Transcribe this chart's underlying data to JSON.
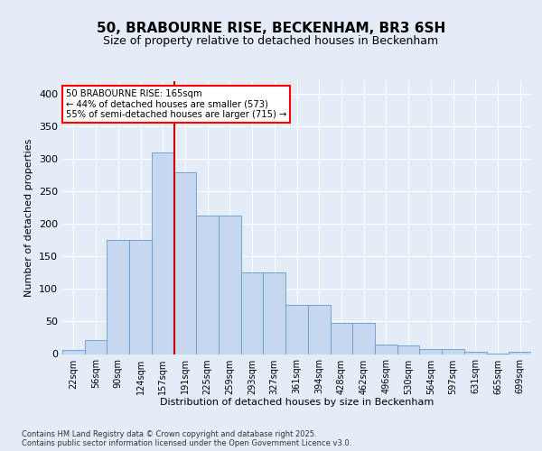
{
  "title_line1": "50, BRABOURNE RISE, BECKENHAM, BR3 6SH",
  "title_line2": "Size of property relative to detached houses in Beckenham",
  "xlabel": "Distribution of detached houses by size in Beckenham",
  "ylabel": "Number of detached properties",
  "bar_labels": [
    "22sqm",
    "56sqm",
    "90sqm",
    "124sqm",
    "157sqm",
    "191sqm",
    "225sqm",
    "259sqm",
    "293sqm",
    "327sqm",
    "361sqm",
    "394sqm",
    "428sqm",
    "462sqm",
    "496sqm",
    "530sqm",
    "564sqm",
    "597sqm",
    "631sqm",
    "665sqm",
    "699sqm"
  ],
  "bar_heights": [
    6,
    21,
    175,
    175,
    311,
    280,
    213,
    213,
    125,
    125,
    76,
    76,
    48,
    48,
    14,
    13,
    8,
    8,
    3,
    1,
    3
  ],
  "bar_color": "#c5d8f0",
  "bar_edge_color": "#6699cc",
  "vline_x": 4.5,
  "vline_color": "#cc0000",
  "annotation_text": "50 BRABOURNE RISE: 165sqm\n← 44% of detached houses are smaller (573)\n55% of semi-detached houses are larger (715) →",
  "ylim_max": 420,
  "yticks": [
    0,
    50,
    100,
    150,
    200,
    250,
    300,
    350,
    400
  ],
  "background_color": "#e4ecf7",
  "grid_color": "#ffffff",
  "footer_text": "Contains HM Land Registry data © Crown copyright and database right 2025.\nContains public sector information licensed under the Open Government Licence v3.0."
}
